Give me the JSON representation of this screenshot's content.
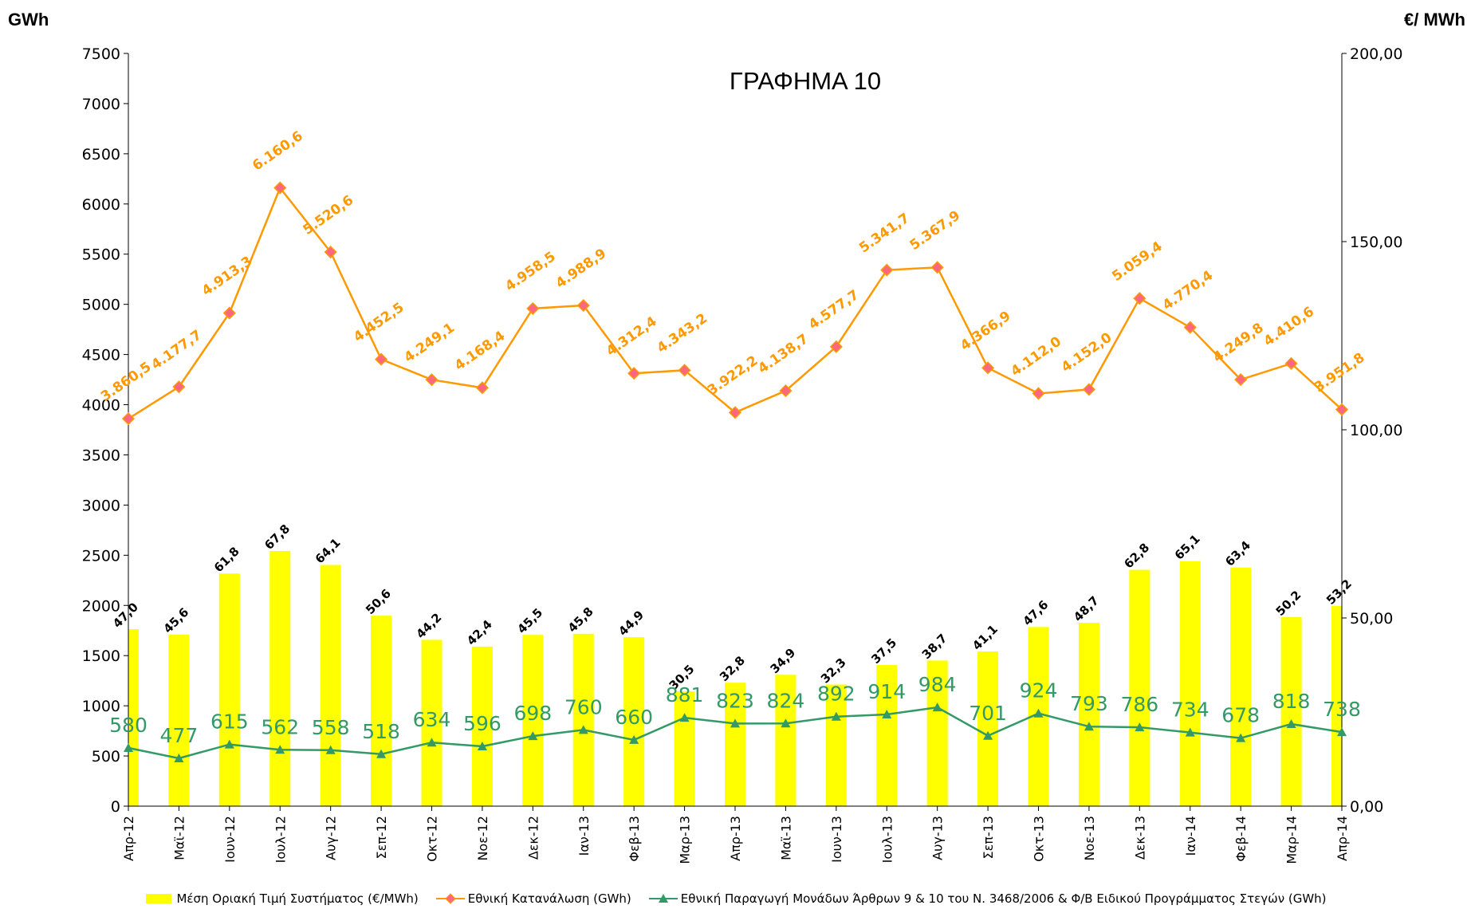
{
  "chart_data": {
    "type": "combo",
    "title": "ΓΡΑΦΗΜΑ 10",
    "y_label": "GWh",
    "y2_label": "€/ MWh",
    "categories": [
      "Απρ-12",
      "Μαϊ-12",
      "Ιουν-12",
      "Ιουλ-12",
      "Αυγ-12",
      "Σεπ-12",
      "Οκτ-12",
      "Νοε-12",
      "Δεκ-12",
      "Ιαν-13",
      "Φεβ-13",
      "Μαρ-13",
      "Απρ-13",
      "Μαϊ-13",
      "Ιουν-13",
      "Ιουλ-13",
      "Αυγ-13",
      "Σεπ-13",
      "Οκτ-13",
      "Νοε-13",
      "Δεκ-13",
      "Ιαν-14",
      "Φεβ-14",
      "Μαρ-14",
      "Απρ-14"
    ],
    "series": [
      {
        "name": "Μέση Οριακή Τιμή Συστήματος (€/MWh)",
        "type": "bar",
        "axis": "y2",
        "color": "#ffff00",
        "values": [
          47.0,
          45.6,
          61.8,
          67.8,
          64.1,
          50.6,
          44.2,
          42.4,
          45.5,
          45.8,
          44.9,
          30.5,
          32.8,
          34.9,
          32.3,
          37.5,
          38.7,
          41.1,
          47.6,
          48.7,
          62.8,
          65.1,
          63.4,
          50.2,
          53.2
        ],
        "value_labels": [
          "47,0",
          "45,6",
          "61,8",
          "67,8",
          "64,1",
          "50,6",
          "44,2",
          "42,4",
          "45,5",
          "45,8",
          "44,9",
          "30,5",
          "32,8",
          "34,9",
          "32,3",
          "37,5",
          "38,7",
          "41,1",
          "47,6",
          "48,7",
          "62,8",
          "65,1",
          "63,4",
          "50,2",
          "53,2"
        ]
      },
      {
        "name": "Εθνική Κατανάλωση (GWh)",
        "type": "line",
        "color": "#ff9900",
        "marker_color": "#ff6680",
        "values": [
          3860.5,
          4177.7,
          4913.3,
          6160.6,
          5520.6,
          4452.5,
          4249.1,
          4168.4,
          4958.5,
          4988.9,
          4312.4,
          4343.2,
          3922.2,
          4138.7,
          4577.7,
          5341.7,
          5367.9,
          4366.9,
          4112.0,
          4152.0,
          5059.4,
          4770.4,
          4249.8,
          4410.6,
          3951.8
        ],
        "value_labels": [
          "3.860,5",
          "4.177,7",
          "4.913,3",
          "6.160,6",
          "5.520,6",
          "4.452,5",
          "4.249,1",
          "4.168,4",
          "4.958,5",
          "4.988,9",
          "4.312,4",
          "4.343,2",
          "3.922,2",
          "4.138,7",
          "4.577,7",
          "5.341,7",
          "5.367,9",
          "4.366,9",
          "4.112,0",
          "4.152,0",
          "5.059,4",
          "4.770,4",
          "4.249,8",
          "4.410,6",
          "3.951,8"
        ]
      },
      {
        "name": "Εθνική Παραγωγή Μονάδων Άρθρων 9 & 10 του Ν. 3468/2006 & Φ/Β Ειδικού Προγράμματος Στεγών (GWh)",
        "type": "line",
        "color": "#339966",
        "marker_color": "#339966",
        "values": [
          580,
          477,
          615,
          562,
          558,
          518,
          634,
          596,
          698,
          760,
          660,
          881,
          823,
          824,
          892,
          914,
          984,
          701,
          924,
          793,
          786,
          734,
          678,
          818,
          738
        ]
      }
    ],
    "ylim": [
      0,
      7500
    ],
    "yticks": [
      0,
      500,
      1000,
      1500,
      2000,
      2500,
      3000,
      3500,
      4000,
      4500,
      5000,
      5500,
      6000,
      6500,
      7000,
      7500
    ],
    "y2lim": [
      0,
      200
    ],
    "y2ticks": [
      {
        "value": 0,
        "label": "0,00"
      },
      {
        "value": 50,
        "label": "50,00"
      },
      {
        "value": 100,
        "label": "100,00"
      },
      {
        "value": 150,
        "label": "150,00"
      },
      {
        "value": 200,
        "label": "200,00"
      }
    ]
  }
}
